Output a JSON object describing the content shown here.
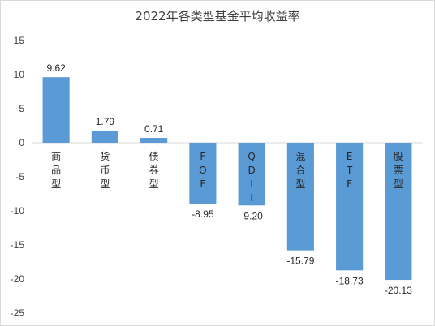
{
  "chart_data": {
    "type": "bar",
    "title": "2022年各类型基金平均收益率",
    "categories": [
      "商品型",
      "货币型",
      "债券型",
      "FOF",
      "QDII",
      "混合型",
      "ETF",
      "股票型"
    ],
    "values": [
      9.62,
      1.79,
      0.71,
      -8.95,
      -9.2,
      -15.79,
      -18.73,
      -20.13
    ],
    "data_labels": [
      "9.62",
      "1.79",
      "0.71",
      "-8.95",
      "-9.20",
      "-15.79",
      "-18.73",
      "-20.13"
    ],
    "ylim": [
      -25,
      15
    ],
    "yticks": [
      15,
      10,
      5,
      0,
      -5,
      -10,
      -15,
      -20,
      -25
    ],
    "ytick_labels": [
      "15",
      "10",
      "5",
      "0",
      "-5",
      "-10",
      "-15",
      "-20",
      "-25"
    ],
    "xlabel": "",
    "ylabel": "",
    "grid": false,
    "legend": "none",
    "category_label_orientation": "vertical-stacked",
    "bar_color": "#5b9bd5",
    "axis_color": "#d9d9d9"
  }
}
